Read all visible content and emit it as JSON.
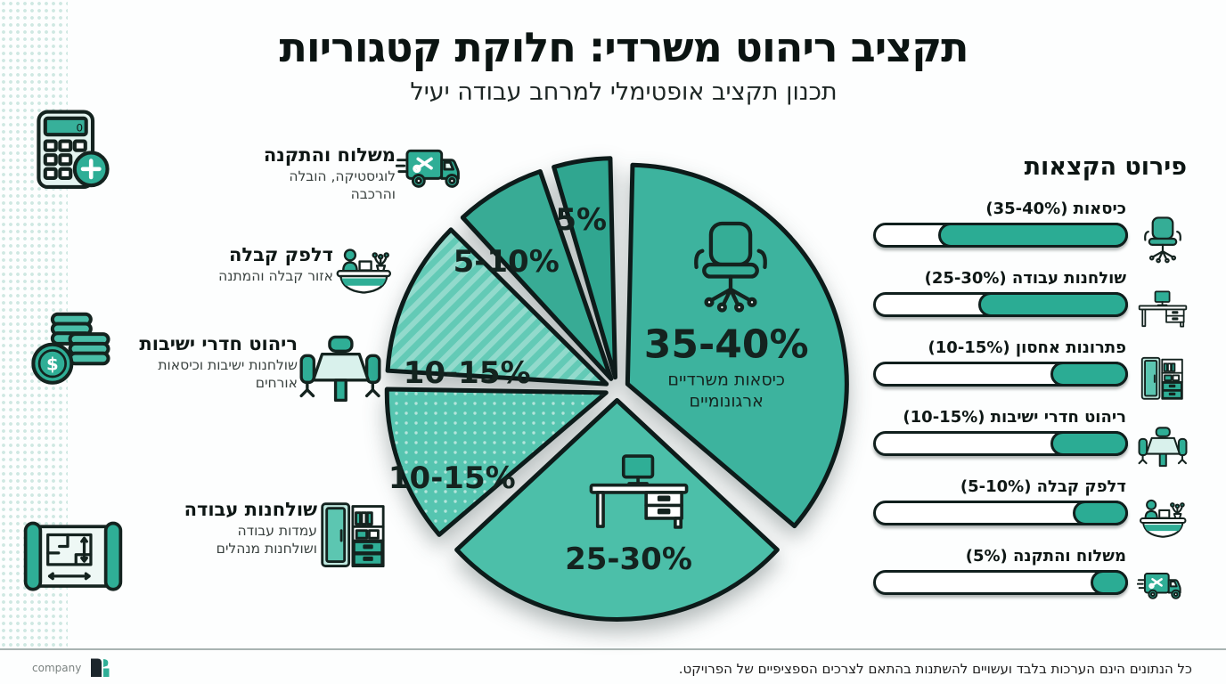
{
  "header": {
    "title": "תקציב ריהוט משרדי: חלוקת קטגוריות",
    "subtitle": "תכנון תקציב אופטימלי למרחב עבודה יעיל"
  },
  "left_decor_icons": [
    "calculator-plus-icon",
    "money-coins-icon",
    "blueprint-icon"
  ],
  "categories": [
    {
      "title": "משלוח והתקנה",
      "subtitle": "לוגיסטיקה, הובלה והרכבה",
      "icon": "delivery-truck-icon"
    },
    {
      "title": "דלפק קבלה",
      "subtitle": "אזור קבלה והמתנה",
      "icon": "reception-desk-icon"
    },
    {
      "title": "ריהוט חדרי ישיבות",
      "subtitle": "שולחנות ישיבות וכיסאות אורחים",
      "icon": "meeting-table-icon"
    },
    {
      "title": "שולחנות עבודה",
      "subtitle": "עמדות עבודה ושולחנות מנהלים",
      "icon": "storage-cabinet-icon"
    }
  ],
  "chart_data": [
    {
      "type": "pie",
      "title": "תקציב ריהוט משרדי: חלוקת קטגוריות",
      "legend_position": "none",
      "slices": [
        {
          "category": "כיסאות משרדיים ארגונומיים",
          "label": "35-40%",
          "sublabel": "כיסאות משרדיים ארגונומיים",
          "value": 37.5,
          "color": "#3db39e",
          "pattern": "solid",
          "icon": "office-chair-icon"
        },
        {
          "category": "שולחנות עבודה",
          "label": "25-30%",
          "value": 27.5,
          "color": "#4cbfa9",
          "pattern": "solid",
          "icon": "desk-icon"
        },
        {
          "category": "פתרונות אחסון",
          "label": "10-15%",
          "value": 12.5,
          "color": "#56c5b0",
          "pattern": "dots"
        },
        {
          "category": "ריהוט חדרי ישיבות",
          "label": "10-15%",
          "value": 12.5,
          "color": "#63cab6",
          "pattern": "stripes"
        },
        {
          "category": "דלפק קבלה",
          "label": "5-10%",
          "value": 7.5,
          "color": "#38ab95",
          "pattern": "solid"
        },
        {
          "category": "משלוח והתקנה",
          "label": "5%",
          "value": 5,
          "color": "#30a690",
          "pattern": "solid"
        }
      ]
    },
    {
      "type": "bar",
      "title": "פירוט הקצאות",
      "direction": "rtl",
      "fill_color": "#2bac94",
      "bars": [
        {
          "label": "כיסאות (35-40%)",
          "fill_pct": 74,
          "icon": "office-chair-icon"
        },
        {
          "label": "שולחנות עבודה (25-30%)",
          "fill_pct": 58,
          "icon": "desk-icon"
        },
        {
          "label": "פתרונות אחסון (10-15%)",
          "fill_pct": 29,
          "icon": "storage-cabinet-icon"
        },
        {
          "label": "ריהוט חדרי ישיבות (10-15%)",
          "fill_pct": 29,
          "icon": "meeting-table-icon"
        },
        {
          "label": "דלפק קבלה (5-10%)",
          "fill_pct": 20,
          "icon": "reception-desk-icon"
        },
        {
          "label": "משלוח והתקנה (5%)",
          "fill_pct": 13,
          "icon": "delivery-truck-icon"
        }
      ]
    }
  ],
  "footer": {
    "company": "company",
    "disclaimer": "כל הנתונים הינם הערכות בלבד ועשויים להשתנות בהתאם לצרכים הספציפיים של הפרויקט."
  },
  "colors": {
    "accent": "#2bac94",
    "ink": "#101f1d",
    "pattern_dots": "#cfe8e2"
  }
}
